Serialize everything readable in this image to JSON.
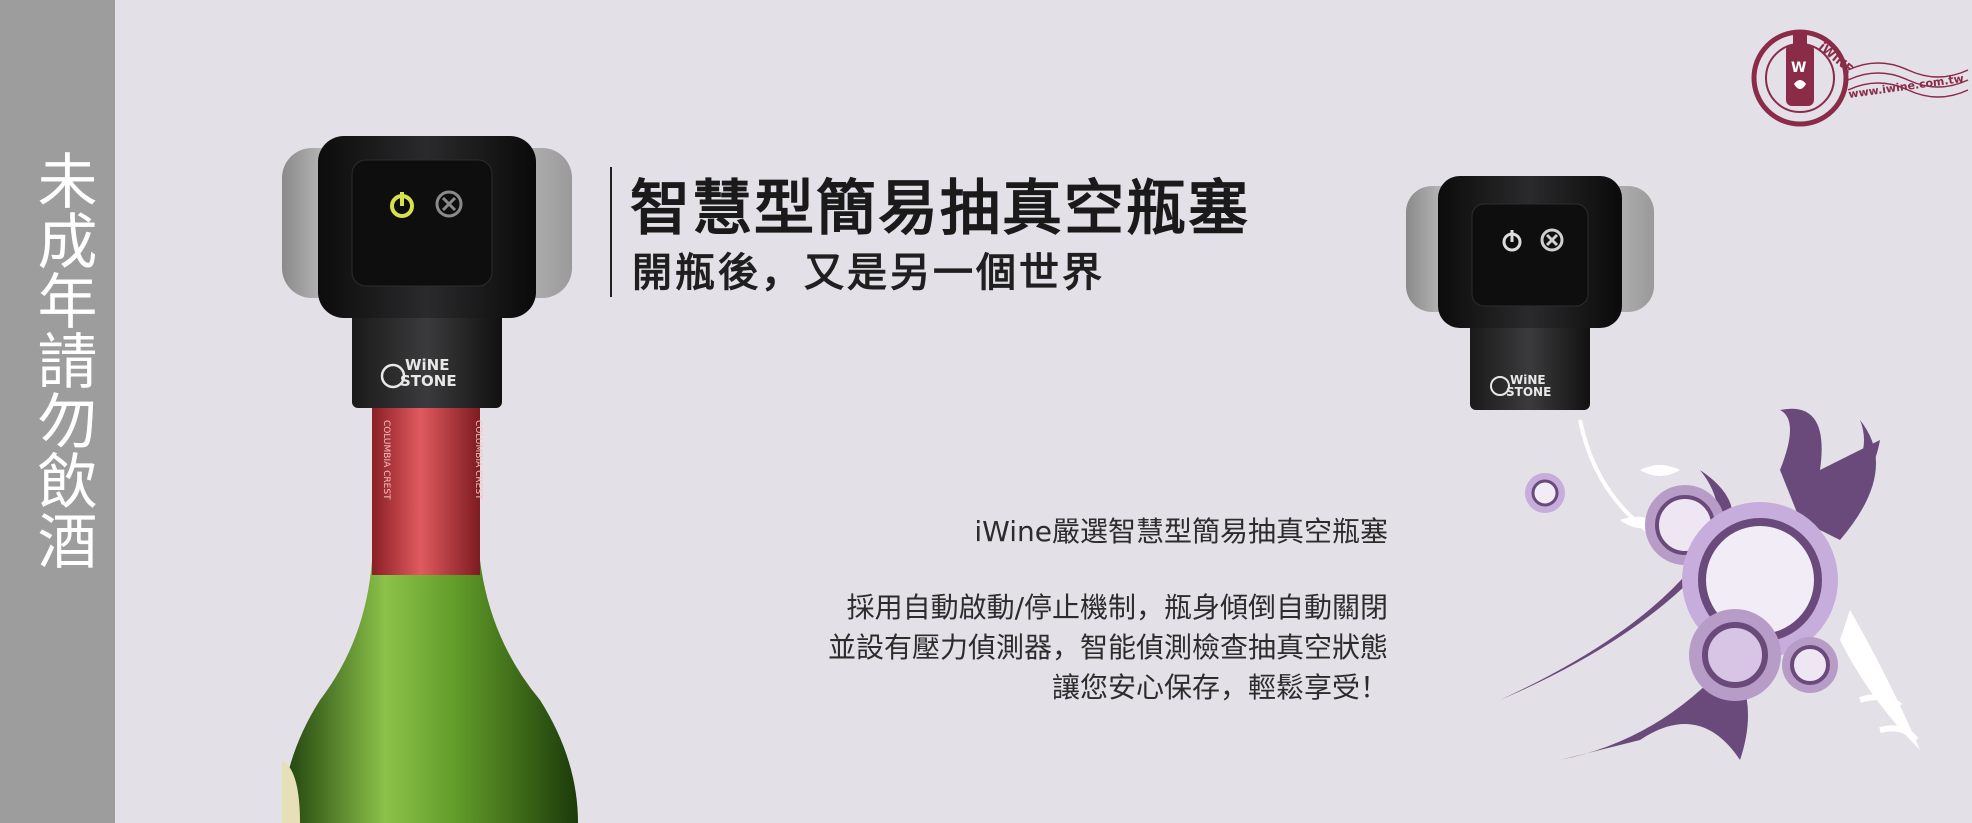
{
  "banner": {
    "warning": "未成年請勿飲酒",
    "title": "智慧型簡易抽真空瓶塞",
    "subtitle": "開瓶後，又是另一個世界",
    "description": {
      "lead": "iWine嚴選智慧型簡易抽真空瓶塞",
      "lines": [
        "採用自動啟動/停止機制，瓶身傾倒自動關閉",
        "並設有壓力偵測器，智能偵測檢查抽真空狀態",
        "讓您安心保存，輕鬆享受！"
      ]
    },
    "logo": {
      "arc_text": "iWINE",
      "url": "www.iwine.com.tw"
    },
    "product_brand": {
      "line1": "WiNE",
      "line2": "STONE"
    },
    "label_text": "COLUMBIA CREST"
  },
  "colors": {
    "background": "#e4e0e8",
    "sidebar": "#9d9d9d",
    "logo": "#8a2c47",
    "swirl_dark": "#6a4a7a",
    "swirl_light": "#b89cc8",
    "capsule_red": "#c8464a",
    "bottle_green": "#5a8a2c"
  }
}
